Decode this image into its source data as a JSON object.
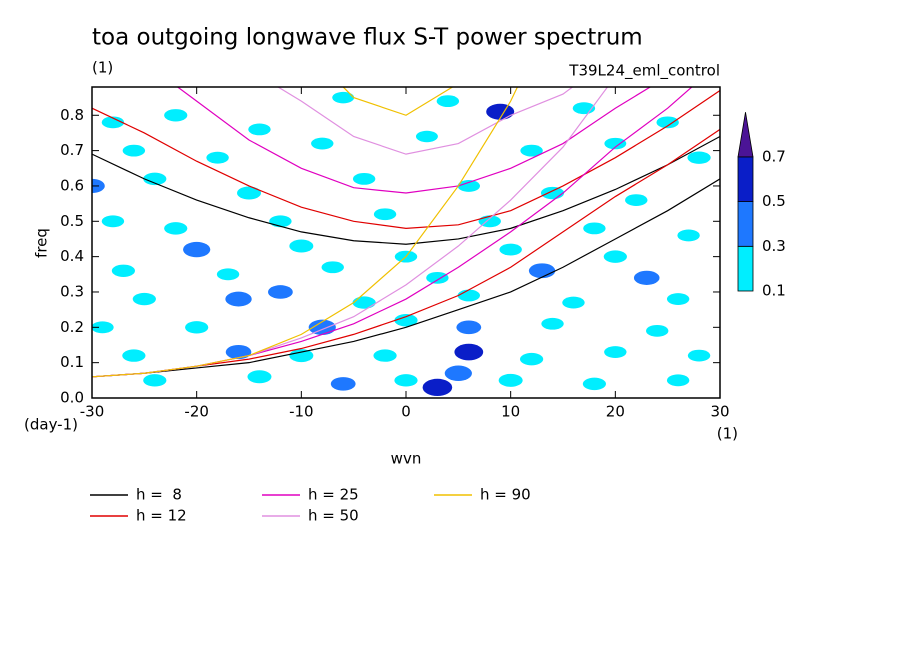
{
  "chart_data": {
    "type": "contour",
    "title": "toa outgoing longwave flux S-T power spectrum",
    "subtitle": "(1)",
    "experiment": "T39L24_eml_control",
    "x_label": "wvn",
    "x_unit": "(1)",
    "y_label": "freq",
    "y_unit": "(day-1)",
    "xlim": [
      -30,
      30
    ],
    "ylim": [
      0,
      0.88
    ],
    "xticks": [
      -30,
      -20,
      -10,
      0,
      10,
      20,
      30
    ],
    "yticks": [
      {
        "value": 0,
        "label": "0.0"
      },
      0.1,
      0.2,
      0.3,
      0.4,
      0.5,
      0.6,
      0.7,
      0.8
    ],
    "levels": [
      0.1,
      0.3,
      0.5,
      0.7
    ],
    "level_colors": [
      "#00eeff",
      "#1e78ff",
      "#0a1ec8",
      "#4b1496"
    ],
    "patches": {
      "x": [
        -28,
        -22,
        -14,
        -6,
        4,
        9,
        17,
        25,
        -26,
        -18,
        -8,
        2,
        12,
        20,
        28,
        -30,
        -24,
        -15,
        -4,
        6,
        14,
        22,
        -28,
        -22,
        -12,
        -2,
        8,
        18,
        27,
        -20,
        -10,
        0,
        10,
        20,
        -27,
        -17,
        -7,
        3,
        13,
        23,
        -25,
        -16,
        -12,
        -4,
        6,
        16,
        26,
        -29,
        -20,
        -8,
        0,
        6,
        14,
        24,
        -26,
        -16,
        -10,
        -2,
        6,
        12,
        20,
        28,
        -24,
        -14,
        -6,
        0,
        3,
        5,
        10,
        18,
        26
      ],
      "y": [
        0.78,
        0.8,
        0.76,
        0.85,
        0.84,
        0.81,
        0.82,
        0.78,
        0.7,
        0.68,
        0.72,
        0.74,
        0.7,
        0.72,
        0.68,
        0.6,
        0.62,
        0.58,
        0.62,
        0.6,
        0.58,
        0.56,
        0.5,
        0.48,
        0.5,
        0.52,
        0.5,
        0.48,
        0.46,
        0.42,
        0.43,
        0.4,
        0.42,
        0.4,
        0.36,
        0.35,
        0.37,
        0.34,
        0.36,
        0.34,
        0.28,
        0.28,
        0.3,
        0.27,
        0.29,
        0.27,
        0.28,
        0.2,
        0.2,
        0.2,
        0.22,
        0.2,
        0.21,
        0.19,
        0.12,
        0.13,
        0.12,
        0.12,
        0.13,
        0.11,
        0.13,
        0.12,
        0.05,
        0.06,
        0.04,
        0.05,
        0.03,
        0.07,
        0.05,
        0.04,
        0.05
      ],
      "values": [
        0.15,
        0.2,
        0.15,
        0.12,
        0.15,
        0.5,
        0.15,
        0.15,
        0.15,
        0.15,
        0.15,
        0.12,
        0.15,
        0.12,
        0.2,
        0.35,
        0.2,
        0.25,
        0.15,
        0.15,
        0.2,
        0.15,
        0.15,
        0.2,
        0.15,
        0.15,
        0.15,
        0.15,
        0.15,
        0.45,
        0.25,
        0.15,
        0.15,
        0.2,
        0.2,
        0.15,
        0.15,
        0.15,
        0.4,
        0.35,
        0.2,
        0.4,
        0.3,
        0.2,
        0.15,
        0.15,
        0.15,
        0.15,
        0.2,
        0.45,
        0.2,
        0.3,
        0.15,
        0.15,
        0.2,
        0.35,
        0.25,
        0.2,
        0.55,
        0.2,
        0.15,
        0.15,
        0.2,
        0.25,
        0.3,
        0.2,
        0.6,
        0.45,
        0.25,
        0.2,
        0.15
      ]
    },
    "x": [
      -30,
      -25,
      -20,
      -15,
      -10,
      -5,
      0,
      5,
      10,
      15,
      20,
      25,
      30
    ],
    "series": [
      {
        "name": "h =  8",
        "color": "#000000",
        "curves": [
          [
            0.69,
            0.62,
            0.56,
            0.51,
            0.47,
            0.445,
            0.435,
            0.45,
            0.48,
            0.53,
            0.59,
            0.66,
            0.74
          ],
          [
            0.06,
            0.07,
            0.085,
            0.1,
            0.13,
            0.16,
            0.2,
            0.25,
            0.3,
            0.37,
            0.45,
            0.53,
            0.62
          ]
        ]
      },
      {
        "name": "h = 12",
        "color": "#e00000",
        "curves": [
          [
            0.82,
            0.75,
            0.67,
            0.6,
            0.54,
            0.5,
            0.48,
            0.49,
            0.53,
            0.6,
            0.68,
            0.77,
            0.87
          ],
          [
            0.06,
            0.07,
            0.09,
            0.11,
            0.14,
            0.18,
            0.23,
            0.29,
            0.37,
            0.47,
            0.57,
            0.66,
            0.76
          ]
        ]
      },
      {
        "name": "h = 25",
        "color": "#e000c0",
        "curves": [
          [
            1.08,
            0.95,
            0.84,
            0.73,
            0.65,
            0.595,
            0.58,
            0.6,
            0.65,
            0.72,
            0.82,
            0.91,
            1.04
          ],
          [
            0.06,
            0.07,
            0.09,
            0.12,
            0.16,
            0.21,
            0.28,
            0.37,
            0.47,
            0.58,
            0.71,
            0.82,
            0.95
          ]
        ]
      },
      {
        "name": "h = 50",
        "color": "#e090e0",
        "curves": [
          [
            1.35,
            1.2,
            1.06,
            0.93,
            0.84,
            0.74,
            0.69,
            0.72,
            0.8,
            0.86,
            0.97,
            1.1,
            1.25
          ],
          [
            0.06,
            0.07,
            0.09,
            0.12,
            0.17,
            0.23,
            0.32,
            0.43,
            0.56,
            0.71,
            0.91,
            1.1,
            1.3
          ]
        ]
      },
      {
        "name": "h = 90",
        "color": "#f0c000",
        "curves": [
          [
            null,
            null,
            null,
            null,
            1.0,
            0.85,
            0.8,
            0.89,
            1.05,
            null,
            null,
            null,
            null
          ],
          [
            0.06,
            0.07,
            0.09,
            0.12,
            0.18,
            0.27,
            0.4,
            0.6,
            0.84,
            1.15,
            null,
            null,
            null
          ]
        ]
      }
    ]
  }
}
